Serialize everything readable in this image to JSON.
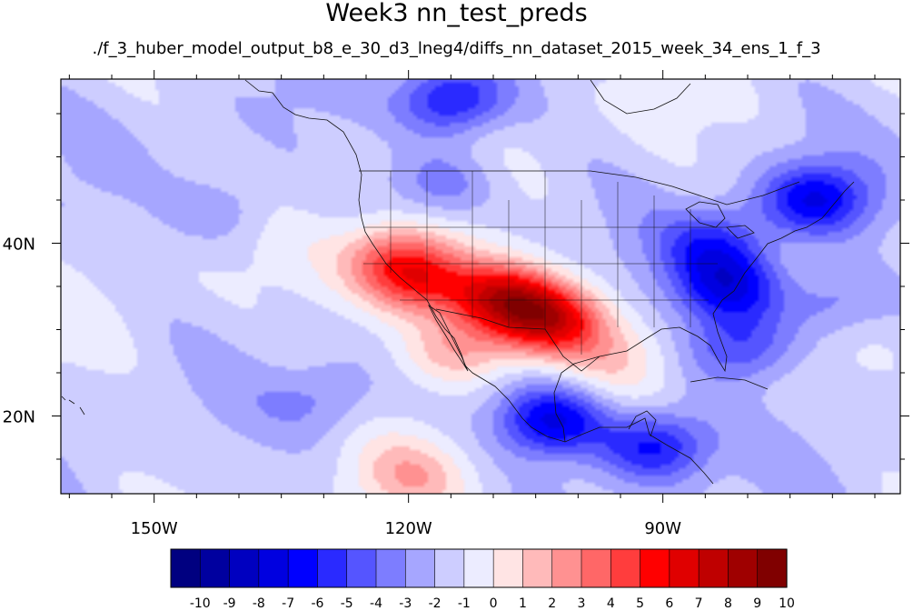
{
  "title": "Week3 nn_test_preds",
  "subtitle": "./f_3_huber_model_output_b8_e_30_d3_lneg4/diffs_nn_dataset_2015_week_34_ens_1_f_3",
  "map": {
    "lon_range": [
      -161,
      -62
    ],
    "lat_range": [
      11,
      59
    ],
    "x_ticks": [
      {
        "lon": -150,
        "label": "150W"
      },
      {
        "lon": -120,
        "label": "120W"
      },
      {
        "lon": -90,
        "label": "90W"
      }
    ],
    "y_ticks": [
      {
        "lat": 40,
        "label": "40N"
      },
      {
        "lat": 20,
        "label": "20N"
      }
    ],
    "ocean_base_value": -1.5,
    "colormap": "blue-white-red diverging"
  },
  "colorbar": {
    "levels": [
      "-10",
      "-9",
      "-8",
      "-7",
      "-6",
      "-5",
      "-4",
      "-3",
      "-2",
      "-1",
      "0",
      "1",
      "2",
      "3",
      "4",
      "5",
      "6",
      "7",
      "8",
      "9",
      "10"
    ],
    "colors": [
      "#000080",
      "#00009f",
      "#0000c0",
      "#0000e0",
      "#0000ff",
      "#2a2aff",
      "#5555ff",
      "#7d7dff",
      "#a6a6ff",
      "#cdcdff",
      "#ececff",
      "#ffe4e4",
      "#ffbaba",
      "#ff9191",
      "#ff6767",
      "#ff3d3d",
      "#ff0000",
      "#e00000",
      "#bf0000",
      "#9f0000",
      "#800000"
    ]
  },
  "chart_data": {
    "type": "heatmap",
    "title": "Week3 nn_test_preds",
    "subtitle": "./f_3_huber_model_output_b8_e_30_d3_lneg4/diffs_nn_dataset_2015_week_34_ens_1_f_3",
    "x_ticks": [
      "150W",
      "120W",
      "90W"
    ],
    "y_ticks": [
      "40N",
      "20N"
    ],
    "colorbar_ticks": [
      -10,
      -9,
      -8,
      -7,
      -6,
      -5,
      -4,
      -3,
      -2,
      -1,
      0,
      1,
      2,
      3,
      4,
      5,
      6,
      7,
      8,
      9,
      10
    ],
    "xlim": [
      -161,
      -62
    ],
    "ylim": [
      11,
      59
    ],
    "features": [
      {
        "region": "Southwest US / northern Mexico",
        "lon": -109,
        "lat": 33.5,
        "value": 8
      },
      {
        "region": "Southern Plains / Texas",
        "lon": -103,
        "lat": 31,
        "value": 7
      },
      {
        "region": "Southern California coast",
        "lon": -118.5,
        "lat": 35.5,
        "value": 6
      },
      {
        "region": "Northern California",
        "lon": -122,
        "lat": 38.5,
        "value": 4
      },
      {
        "region": "Baja California",
        "lon": -114,
        "lat": 28,
        "value": 5
      },
      {
        "region": "Gulf of California",
        "lon": -113,
        "lat": 29,
        "value": -3
      },
      {
        "region": "Southern Canada",
        "lon": -115,
        "lat": 56.5,
        "value": -7
      },
      {
        "region": "Pacific Northwest",
        "lon": -116,
        "lat": 47,
        "value": -4
      },
      {
        "region": "Great Lakes / Ohio Valley",
        "lon": -84,
        "lat": 40,
        "value": -5
      },
      {
        "region": "Appalachians / Carolinas",
        "lon": -82,
        "lat": 35,
        "value": -7
      },
      {
        "region": "New England / Quebec",
        "lon": -72,
        "lat": 45,
        "value": -7
      },
      {
        "region": "Florida",
        "lon": -81,
        "lat": 28,
        "value": -5
      },
      {
        "region": "Mexico Pacific coast",
        "lon": -103,
        "lat": 19.5,
        "value": -8
      },
      {
        "region": "Central America",
        "lon": -91,
        "lat": 16.5,
        "value": -7
      },
      {
        "region": "Northeast Pacific",
        "lon": -142,
        "lat": 44,
        "value": -3
      },
      {
        "region": "Subtropical East Pacific",
        "lon": -130,
        "lat": 22,
        "value": -3
      },
      {
        "region": "Tropical East Pacific",
        "lon": -120,
        "lat": 13,
        "value": 2
      },
      {
        "region": "Western Gulf of Mexico",
        "lon": -95,
        "lat": 27,
        "value": 1
      },
      {
        "region": "Western Atlantic",
        "lon": -70,
        "lat": 33,
        "value": -4
      }
    ]
  }
}
